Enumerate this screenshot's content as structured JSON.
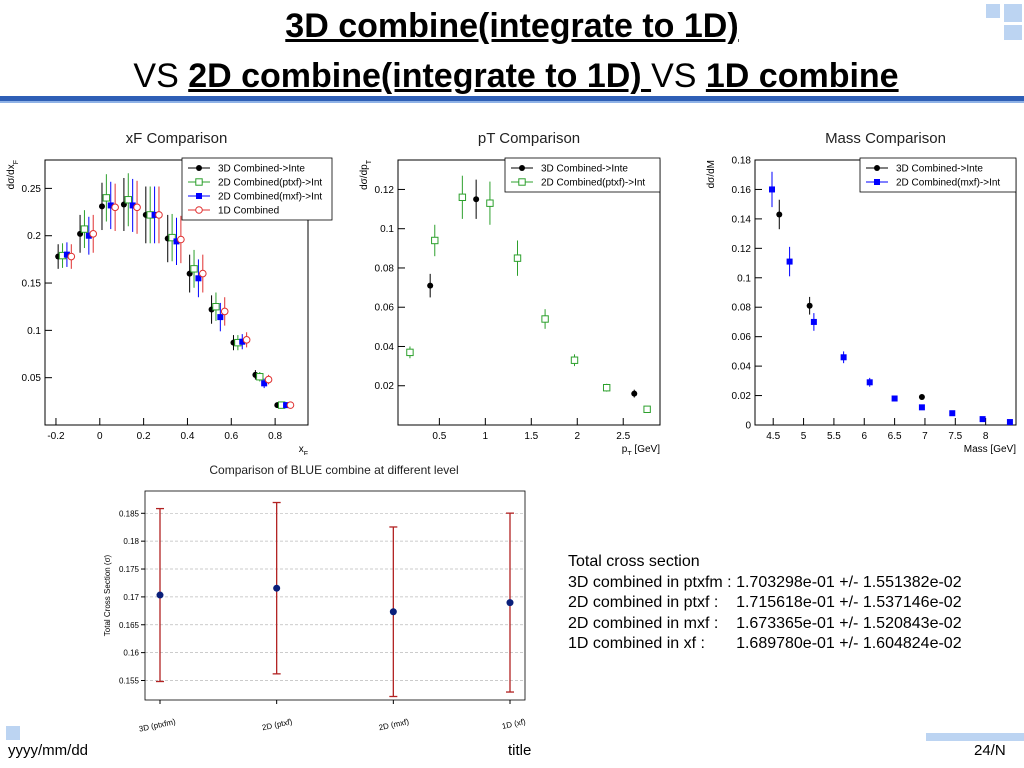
{
  "slide": {
    "title_line1": "3D combine(integrate to 1D)",
    "title_vs1": "VS ",
    "title_2d": "2D combine(integrate to 1D) ",
    "title_vs2": "VS ",
    "title_1d": "1D combine",
    "footer_left": "yyyy/mm/dd",
    "footer_center": "title",
    "footer_right": "24/N"
  },
  "colors": {
    "accent": "#2e5fb6",
    "accent_light": "#bcd4f2"
  },
  "cross_section": {
    "heading": "Total cross section",
    "rows": [
      "3D combined in ptxfm : 1.703298e-01 +/- 1.551382e-02",
      "2D combined in ptxf :    1.715618e-01 +/- 1.537146e-02",
      "2D combined in mxf :    1.673365e-01 +/- 1.520843e-02",
      "1D combined in xf :       1.689780e-01 +/- 1.604824e-02"
    ]
  },
  "chart_data": [
    {
      "type": "scatter",
      "title": "xF Comparison",
      "xlabel": "x_F",
      "ylabel": "dσ/dx_F",
      "xlim": [
        -0.25,
        0.95
      ],
      "ylim": [
        0,
        0.28
      ],
      "xticks": [
        -0.2,
        0,
        0.2,
        0.4,
        0.6,
        0.8
      ],
      "yticks": [
        0.05,
        0.1,
        0.15,
        0.2,
        0.25
      ],
      "legend": "top-right",
      "series": [
        {
          "name": "3D Combined->Inte",
          "color": "#000000",
          "marker": "dot",
          "x": [
            -0.19,
            -0.09,
            0.01,
            0.11,
            0.21,
            0.31,
            0.41,
            0.51,
            0.61,
            0.71,
            0.81
          ],
          "y": [
            0.178,
            0.202,
            0.231,
            0.233,
            0.222,
            0.197,
            0.16,
            0.122,
            0.087,
            0.053,
            0.021
          ],
          "err": [
            0.013,
            0.02,
            0.025,
            0.028,
            0.03,
            0.025,
            0.02,
            0.015,
            0.008,
            0.005,
            0.003
          ]
        },
        {
          "name": "2D Combined(ptxf)->Int",
          "color": "#2ca02c",
          "marker": "open-square",
          "x": [
            -0.17,
            -0.07,
            0.03,
            0.13,
            0.23,
            0.33,
            0.43,
            0.53,
            0.63,
            0.73,
            0.83
          ],
          "y": [
            0.179,
            0.207,
            0.24,
            0.238,
            0.222,
            0.198,
            0.165,
            0.125,
            0.087,
            0.051,
            0.021
          ],
          "err": [
            0.013,
            0.02,
            0.025,
            0.028,
            0.03,
            0.025,
            0.02,
            0.015,
            0.008,
            0.005,
            0.003
          ]
        },
        {
          "name": "2D Combined(mxf)->Int",
          "color": "#0000ff",
          "marker": "square",
          "x": [
            -0.15,
            -0.05,
            0.05,
            0.15,
            0.25,
            0.35,
            0.45,
            0.55,
            0.65,
            0.75,
            0.85
          ],
          "y": [
            0.18,
            0.2,
            0.232,
            0.232,
            0.222,
            0.194,
            0.155,
            0.114,
            0.088,
            0.044,
            0.021
          ],
          "err": [
            0.013,
            0.02,
            0.025,
            0.028,
            0.03,
            0.025,
            0.02,
            0.015,
            0.008,
            0.005,
            0.003
          ]
        },
        {
          "name": "1D Combined",
          "color": "#e03030",
          "marker": "open-circle",
          "x": [
            -0.13,
            -0.03,
            0.07,
            0.17,
            0.27,
            0.37,
            0.47,
            0.57,
            0.67,
            0.77,
            0.87
          ],
          "y": [
            0.178,
            0.202,
            0.23,
            0.23,
            0.222,
            0.196,
            0.16,
            0.12,
            0.09,
            0.048,
            0.021
          ],
          "err": [
            0.013,
            0.02,
            0.025,
            0.028,
            0.03,
            0.025,
            0.02,
            0.015,
            0.008,
            0.005,
            0.003
          ]
        }
      ]
    },
    {
      "type": "scatter",
      "title": "pT Comparison",
      "xlabel": "p_T [GeV]",
      "ylabel": "dσ/dp_T",
      "xlim": [
        0.05,
        2.9
      ],
      "ylim": [
        0,
        0.135
      ],
      "xticks": [
        0.5,
        1,
        1.5,
        2,
        2.5
      ],
      "yticks": [
        0.02,
        0.04,
        0.06,
        0.08,
        0.1,
        0.12
      ],
      "legend": "top-right",
      "series": [
        {
          "name": "3D Combined->Inte",
          "color": "#000000",
          "marker": "dot",
          "x": [
            0.4,
            0.9,
            1.35,
            2.62
          ],
          "y": [
            0.071,
            0.115,
            0.085,
            0.016
          ],
          "err": [
            0.006,
            0.01,
            0.008,
            0.002
          ]
        },
        {
          "name": "2D Combined(ptxf)->Int",
          "color": "#2ca02c",
          "marker": "open-square",
          "x": [
            0.18,
            0.45,
            0.75,
            1.05,
            1.35,
            1.65,
            1.97,
            2.32,
            2.76
          ],
          "y": [
            0.037,
            0.094,
            0.116,
            0.113,
            0.085,
            0.054,
            0.033,
            0.019,
            0.008
          ],
          "err": [
            0.003,
            0.008,
            0.011,
            0.011,
            0.009,
            0.005,
            0.003,
            0.002,
            0.001
          ]
        }
      ]
    },
    {
      "type": "scatter",
      "title": "Mass Comparison",
      "xlabel": "Mass [GeV]",
      "ylabel": "dσ/dM",
      "xlim": [
        4.2,
        8.5
      ],
      "ylim": [
        0,
        0.18
      ],
      "xticks": [
        4.5,
        5,
        5.5,
        6,
        6.5,
        7,
        7.5,
        8
      ],
      "yticks": [
        0,
        0.02,
        0.04,
        0.06,
        0.08,
        0.1,
        0.12,
        0.14,
        0.16,
        0.18
      ],
      "legend": "top-right",
      "series": [
        {
          "name": "3D Combined->Inte",
          "color": "#000000",
          "marker": "dot",
          "x": [
            4.6,
            5.1,
            6.95
          ],
          "y": [
            0.143,
            0.081,
            0.019
          ],
          "err": [
            0.01,
            0.006,
            0.001
          ]
        },
        {
          "name": "2D Combined(mxf)->Int",
          "color": "#0000ff",
          "marker": "square",
          "x": [
            4.48,
            4.77,
            5.17,
            5.66,
            6.09,
            6.5,
            6.95,
            7.45,
            7.95,
            8.4
          ],
          "y": [
            0.16,
            0.111,
            0.07,
            0.046,
            0.029,
            0.018,
            0.012,
            0.008,
            0.004,
            0.002
          ],
          "err": [
            0.012,
            0.01,
            0.006,
            0.004,
            0.003,
            0.002,
            0.001,
            0.001,
            0.001,
            0.0005
          ]
        }
      ]
    },
    {
      "type": "scatter",
      "title": "Comparison of BLUE combine at different level",
      "xlabel": "",
      "ylabel": "Total Cross Section (σ)",
      "categories": [
        "3D (ptxfm)",
        "2D (ptxf)",
        "2D (mxf)",
        "1D (xf)"
      ],
      "ylim": [
        0.1515,
        0.189
      ],
      "yticks": [
        0.155,
        0.16,
        0.165,
        0.17,
        0.175,
        0.18,
        0.185
      ],
      "grid": true,
      "values": [
        0.1703298,
        0.1715618,
        0.1673365,
        0.168978
      ],
      "err": [
        0.01551382,
        0.01537146,
        0.01520843,
        0.01604824
      ]
    }
  ]
}
